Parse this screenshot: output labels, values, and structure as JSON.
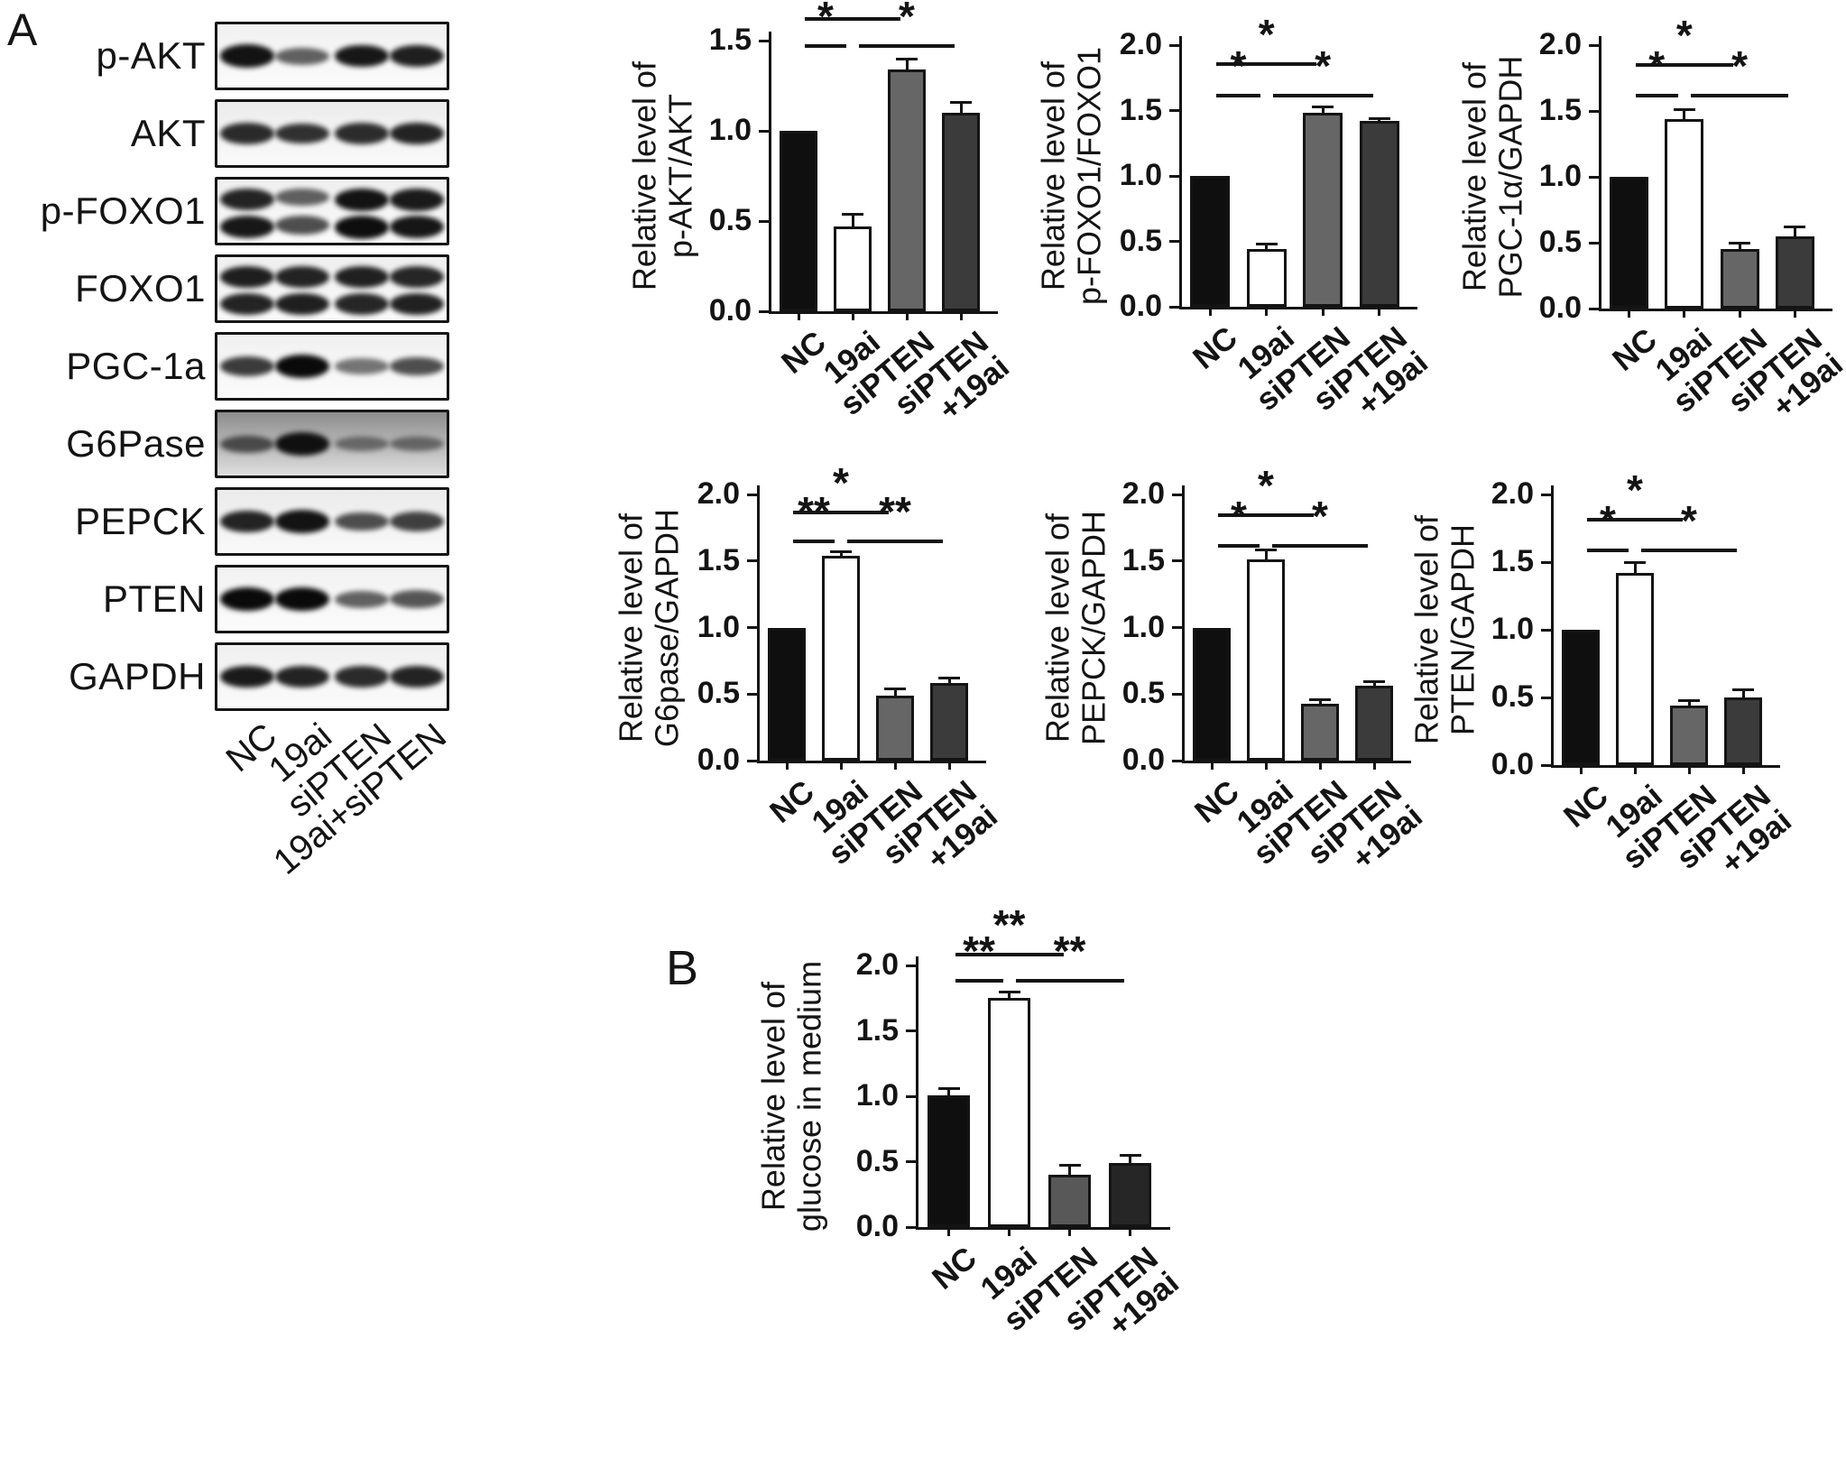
{
  "panels": {
    "a": "A",
    "b": "B"
  },
  "western_blot": {
    "lane_labels": [
      "NC",
      "19ai",
      "siPTEN",
      "19ai+siPTEN"
    ],
    "rows": [
      {
        "label": "p-AKT",
        "bg": "#f1f1f1",
        "bands": [
          [
            0.95,
            0.5,
            0.92,
            0.88
          ]
        ]
      },
      {
        "label": "AKT",
        "bg": "#ececec",
        "bands": [
          [
            0.82,
            0.78,
            0.8,
            0.85
          ]
        ]
      },
      {
        "label": "p-FOXO1",
        "bg": "#efefef",
        "bands": [
          [
            0.85,
            0.5,
            0.95,
            0.9
          ],
          [
            0.92,
            0.62,
            0.97,
            0.93
          ]
        ]
      },
      {
        "label": "FOXO1",
        "bg": "#efefef",
        "bands": [
          [
            0.88,
            0.85,
            0.86,
            0.84
          ],
          [
            0.85,
            0.88,
            0.84,
            0.86
          ]
        ]
      },
      {
        "label": "PGC-1a",
        "bg": "#f1f1f1",
        "bands": [
          [
            0.72,
            1.0,
            0.4,
            0.62
          ]
        ]
      },
      {
        "label": "G6Pase",
        "bg": "#8d8d8d",
        "bands": [
          [
            0.5,
            0.95,
            0.28,
            0.3
          ]
        ]
      },
      {
        "label": "PEPCK",
        "bg": "#ebebeb",
        "bands": [
          [
            0.85,
            0.95,
            0.62,
            0.7
          ]
        ]
      },
      {
        "label": "PTEN",
        "bg": "#f2f2f2",
        "bands": [
          [
            1.0,
            1.0,
            0.5,
            0.58
          ]
        ]
      },
      {
        "label": "GAPDH",
        "bg": "#f0f0f0",
        "bands": [
          [
            0.9,
            0.85,
            0.82,
            0.85
          ]
        ]
      }
    ]
  },
  "chart_data": [
    {
      "id": "p-akt-akt",
      "panel": "A",
      "type": "bar",
      "ylabel_line1": "Relative level of",
      "ylabel_line2": "p-AKT/AKT",
      "categories": [
        "NC",
        "19ai",
        "siPTEN",
        "siPTEN\n+19ai"
      ],
      "values": [
        1.0,
        0.47,
        1.34,
        1.1
      ],
      "errors": [
        0,
        0.07,
        0.06,
        0.06
      ],
      "ylim": [
        0,
        1.5
      ],
      "yticks": [
        "0.0",
        "0.5",
        "1.0",
        "1.5"
      ],
      "fills": [
        "#0f0f0f",
        "#ffffff",
        "#666666",
        "#3b3b3b"
      ],
      "sig": [
        {
          "from": 0,
          "to": 2,
          "label": "*",
          "y": 1.63
        },
        {
          "from": 0,
          "to": 1,
          "label": "*",
          "y": 1.48
        },
        {
          "from": 1,
          "to": 3,
          "label": "*",
          "y": 1.48
        }
      ]
    },
    {
      "id": "p-foxo1-foxo1",
      "panel": "A",
      "type": "bar",
      "ylabel_line1": "Relative level of",
      "ylabel_line2": "p-FOXO1/FOXO1",
      "categories": [
        "NC",
        "19ai",
        "siPTEN",
        "siPTEN\n+19ai"
      ],
      "values": [
        1.0,
        0.44,
        1.48,
        1.42
      ],
      "errors": [
        0,
        0.04,
        0.05,
        0.02
      ],
      "ylim": [
        0,
        2.0
      ],
      "yticks": [
        "0.0",
        "0.5",
        "1.0",
        "1.5",
        "2.0"
      ],
      "fills": [
        "#0f0f0f",
        "#ffffff",
        "#666666",
        "#3b3b3b"
      ],
      "sig": [
        {
          "from": 0,
          "to": 2,
          "label": "*",
          "y": 1.87
        },
        {
          "from": 0,
          "to": 1,
          "label": "*",
          "y": 1.63
        },
        {
          "from": 1,
          "to": 3,
          "label": "*",
          "y": 1.63
        }
      ]
    },
    {
      "id": "pgc1a-gapdh",
      "panel": "A",
      "type": "bar",
      "ylabel_line1": "Relative level of",
      "ylabel_line2": "PGC-1α/GAPDH",
      "categories": [
        "NC",
        "19ai",
        "siPTEN",
        "siPTEN\n+19ai"
      ],
      "values": [
        1.0,
        1.44,
        0.45,
        0.55
      ],
      "errors": [
        0,
        0.07,
        0.05,
        0.07
      ],
      "ylim": [
        0,
        2.0
      ],
      "yticks": [
        "0.0",
        "0.5",
        "1.0",
        "1.5",
        "2.0"
      ],
      "fills": [
        "#0f0f0f",
        "#ffffff",
        "#666666",
        "#3b3b3b"
      ],
      "sig": [
        {
          "from": 0,
          "to": 2,
          "label": "*",
          "y": 1.86
        },
        {
          "from": 0,
          "to": 1,
          "label": "*",
          "y": 1.63
        },
        {
          "from": 1,
          "to": 3,
          "label": "*",
          "y": 1.63
        }
      ]
    },
    {
      "id": "g6pase-gapdh",
      "panel": "A",
      "type": "bar",
      "ylabel_line1": "Relative level of",
      "ylabel_line2": "G6pase/GAPDH",
      "categories": [
        "NC",
        "19ai",
        "siPTEN",
        "siPTEN\n+19ai"
      ],
      "values": [
        1.0,
        1.54,
        0.49,
        0.58
      ],
      "errors": [
        0,
        0.03,
        0.05,
        0.04
      ],
      "ylim": [
        0,
        2.0
      ],
      "yticks": [
        "0.0",
        "0.5",
        "1.0",
        "1.5",
        "2.0"
      ],
      "fills": [
        "#0f0f0f",
        "#ffffff",
        "#666666",
        "#3b3b3b"
      ],
      "sig": [
        {
          "from": 0,
          "to": 2,
          "label": "*",
          "y": 1.88
        },
        {
          "from": 0,
          "to": 1,
          "label": "**",
          "y": 1.66
        },
        {
          "from": 1,
          "to": 3,
          "label": "**",
          "y": 1.66
        }
      ]
    },
    {
      "id": "pepck-gapdh",
      "panel": "A",
      "type": "bar",
      "ylabel_line1": "Relative level of",
      "ylabel_line2": "PEPCK/GAPDH",
      "categories": [
        "NC",
        "19ai",
        "siPTEN",
        "siPTEN\n+19ai"
      ],
      "values": [
        1.0,
        1.51,
        0.43,
        0.56
      ],
      "errors": [
        0,
        0.07,
        0.03,
        0.03
      ],
      "ylim": [
        0,
        2.0
      ],
      "yticks": [
        "0.0",
        "0.5",
        "1.0",
        "1.5",
        "2.0"
      ],
      "fills": [
        "#0f0f0f",
        "#ffffff",
        "#666666",
        "#3b3b3b"
      ],
      "sig": [
        {
          "from": 0,
          "to": 2,
          "label": "*",
          "y": 1.86
        },
        {
          "from": 0,
          "to": 1,
          "label": "*",
          "y": 1.63
        },
        {
          "from": 1,
          "to": 3,
          "label": "*",
          "y": 1.63
        }
      ]
    },
    {
      "id": "pten-gapdh",
      "panel": "A",
      "type": "bar",
      "ylabel_line1": "Relative level of",
      "ylabel_line2": "PTEN/GAPDH",
      "categories": [
        "NC",
        "19ai",
        "siPTEN",
        "siPTEN\n+19ai"
      ],
      "values": [
        1.0,
        1.42,
        0.44,
        0.5
      ],
      "errors": [
        0,
        0.08,
        0.04,
        0.06
      ],
      "ylim": [
        0,
        2.0
      ],
      "yticks": [
        "0.0",
        "0.5",
        "1.0",
        "1.5",
        "2.0"
      ],
      "fills": [
        "#0f0f0f",
        "#ffffff",
        "#666666",
        "#3b3b3b"
      ],
      "sig": [
        {
          "from": 0,
          "to": 2,
          "label": "*",
          "y": 1.83
        },
        {
          "from": 0,
          "to": 1,
          "label": "*",
          "y": 1.6
        },
        {
          "from": 1,
          "to": 3,
          "label": "*",
          "y": 1.6
        }
      ]
    },
    {
      "id": "glucose-in-medium",
      "panel": "B",
      "type": "bar",
      "ylabel_line1": "Relative level of",
      "ylabel_line2": "glucose in medium",
      "categories": [
        "NC",
        "19ai",
        "siPTEN",
        "siPTEN\n+19ai"
      ],
      "values": [
        1.01,
        1.75,
        0.4,
        0.49
      ],
      "errors": [
        0.05,
        0.05,
        0.07,
        0.06
      ],
      "ylim": [
        0,
        2.0
      ],
      "yticks": [
        "0.0",
        "0.5",
        "1.0",
        "1.5",
        "2.0"
      ],
      "fills": [
        "#0f0f0f",
        "#ffffff",
        "#585858",
        "#262626"
      ],
      "sig": [
        {
          "from": 0,
          "to": 2,
          "label": "**",
          "y": 2.1
        },
        {
          "from": 0,
          "to": 1,
          "label": "**",
          "y": 1.9
        },
        {
          "from": 1,
          "to": 3,
          "label": "**",
          "y": 1.9
        }
      ]
    }
  ]
}
